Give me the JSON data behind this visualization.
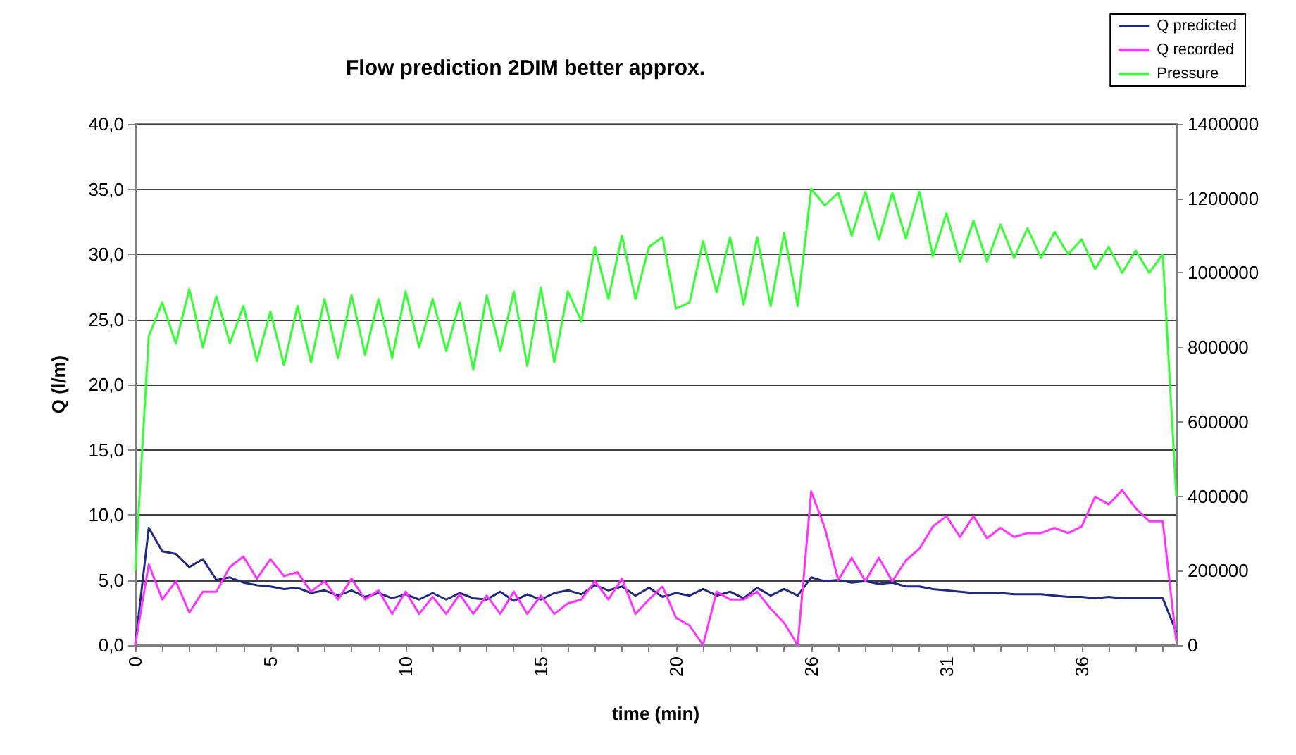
{
  "chart_data": {
    "type": "line",
    "title": "Flow prediction 2DIM better approx.",
    "xlabel": "time (min)",
    "ylabel": "Q (l/m)",
    "categories": [
      "0",
      null,
      null,
      null,
      null,
      null,
      null,
      null,
      null,
      null,
      "5",
      null,
      null,
      null,
      null,
      null,
      null,
      null,
      null,
      null,
      "10",
      null,
      null,
      null,
      null,
      null,
      null,
      null,
      null,
      null,
      "15",
      null,
      null,
      null,
      null,
      null,
      null,
      null,
      null,
      null,
      "20",
      null,
      null,
      null,
      null,
      null,
      null,
      null,
      null,
      null,
      "26",
      null,
      null,
      null,
      null,
      null,
      null,
      null,
      null,
      null,
      "31",
      null,
      null,
      null,
      null,
      null,
      null,
      null,
      null,
      null,
      "36",
      null,
      null,
      null,
      null,
      null,
      null,
      null
    ],
    "series": [
      {
        "name": "Q predicted",
        "color": "#1f2a80",
        "values": [
          0,
          9.0,
          7.2,
          7.0,
          6.0,
          6.6,
          5.0,
          5.2,
          4.8,
          4.6,
          4.5,
          4.3,
          4.4,
          4.0,
          4.2,
          3.8,
          4.2,
          3.7,
          4.0,
          3.6,
          3.9,
          3.5,
          4.0,
          3.5,
          4.0,
          3.6,
          3.5,
          4.1,
          3.4,
          3.9,
          3.5,
          4.0,
          4.2,
          3.9,
          4.6,
          4.2,
          4.5,
          3.8,
          4.4,
          3.7,
          4.0,
          3.8,
          4.3,
          3.8,
          4.1,
          3.6,
          4.4,
          3.8,
          4.3,
          3.8,
          5.2,
          4.9,
          5.0,
          4.8,
          4.9,
          4.7,
          4.8,
          4.5,
          4.5,
          4.3,
          4.2,
          4.1,
          4.0,
          4.0,
          4.0,
          3.9,
          3.9,
          3.9,
          3.8,
          3.7,
          3.7,
          3.6,
          3.7,
          3.6,
          3.6,
          3.6,
          3.6,
          1.0
        ]
      },
      {
        "name": "Q recorded",
        "color": "#ff33ff",
        "values": [
          0,
          6.2,
          3.5,
          4.9,
          2.5,
          4.1,
          4.1,
          6.0,
          6.8,
          5.1,
          6.6,
          5.3,
          5.6,
          4.1,
          4.9,
          3.5,
          5.1,
          3.5,
          4.2,
          2.4,
          4.1,
          2.4,
          3.7,
          2.4,
          3.9,
          2.4,
          3.8,
          2.4,
          4.1,
          2.4,
          3.8,
          2.4,
          3.2,
          3.5,
          4.9,
          3.5,
          5.1,
          2.4,
          3.5,
          4.5,
          2.1,
          1.5,
          0,
          4.1,
          3.5,
          3.5,
          4.1,
          2.8,
          1.7,
          0,
          11.8,
          9.0,
          5.0,
          6.7,
          4.9,
          6.7,
          4.9,
          6.5,
          7.4,
          9.1,
          9.9,
          8.3,
          9.9,
          8.2,
          9.0,
          8.3,
          8.6,
          8.6,
          9.0,
          8.6,
          9.1,
          11.4,
          10.8,
          11.9,
          10.5,
          9.5,
          9.5,
          0.3
        ]
      },
      {
        "name": "Pressure",
        "color": "#33ff33",
        "axis": "y2",
        "values": [
          200000,
          830000,
          920000,
          810000,
          956000,
          800000,
          937000,
          811000,
          911000,
          763000,
          896000,
          752000,
          911000,
          760000,
          930000,
          770000,
          940000,
          780000,
          930000,
          770000,
          950000,
          800000,
          930000,
          790000,
          920000,
          740000,
          940000,
          790000,
          950000,
          750000,
          960000,
          760000,
          950000,
          870000,
          1070000,
          930000,
          1100000,
          930000,
          1070000,
          1096000,
          904000,
          920000,
          1085000,
          948000,
          1096000,
          915000,
          1096000,
          911000,
          1107000,
          911000,
          1226000,
          1181000,
          1215000,
          1100000,
          1218000,
          1089000,
          1215000,
          1092000,
          1218000,
          1044000,
          1160000,
          1030000,
          1140000,
          1030000,
          1130000,
          1040000,
          1120000,
          1040000,
          1110000,
          1050000,
          1090000,
          1010000,
          1070000,
          1000000,
          1060000,
          1000000,
          1050000,
          400000
        ]
      }
    ],
    "ylim": [
      0,
      40
    ],
    "yticks": [
      {
        "value": 0,
        "label": "0,0"
      },
      {
        "value": 5,
        "label": "5,0"
      },
      {
        "value": 10,
        "label": "10,0"
      },
      {
        "value": 15,
        "label": "15,0"
      },
      {
        "value": 20,
        "label": "20,0"
      },
      {
        "value": 25,
        "label": "25,0"
      },
      {
        "value": 30,
        "label": "30,0"
      },
      {
        "value": 35,
        "label": "35,0"
      },
      {
        "value": 40,
        "label": "40,0"
      }
    ],
    "y2lim": [
      0,
      1400000
    ],
    "y2ticks": [
      0,
      200000,
      400000,
      600000,
      800000,
      1000000,
      1200000,
      1400000
    ],
    "grid": "y",
    "legend": "top right",
    "marker": "none",
    "line_style": "solid"
  }
}
